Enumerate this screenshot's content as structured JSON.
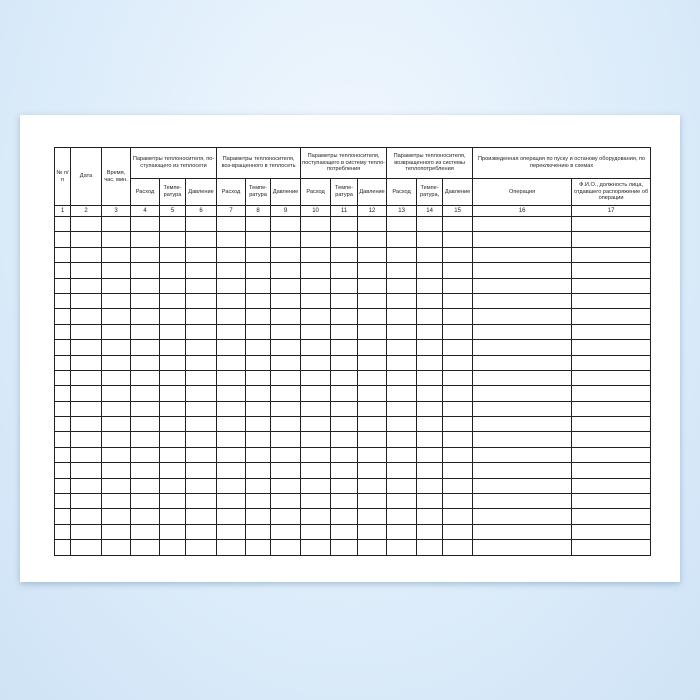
{
  "headers": {
    "no": "№ п/п",
    "date": "Дата",
    "time": "Время, час. мин.",
    "group1": "Параметры теплоносителя, по-ступающего из теплосети",
    "group2": "Параметры теплоносителя, воз-вращенного в теплосеть",
    "group3": "Параметры теплоносителя, поступающего в систему тепло-потребления",
    "group4": "Параметры теплоносителя, возвращенного из системы теплопотребления",
    "group5": "Произведенная операция по пуску и останову оборудования, по переключению в схемах",
    "sub": [
      "Расход",
      "Темпе-ратура",
      "Давление",
      "Расход",
      "Темпе-ратура",
      "Давление",
      "Расход",
      "Темпе-ратура",
      "Давление",
      "Расход",
      "Темпе-ратура,",
      "Давление"
    ],
    "operation": "Операция",
    "person": "Ф.И.О., должность лица, отдавшего распоряжение об операции"
  },
  "column_numbers": [
    "1",
    "2",
    "3",
    "4",
    "5",
    "6",
    "7",
    "8",
    "9",
    "10",
    "11",
    "12",
    "13",
    "14",
    "15",
    "16",
    "17"
  ],
  "empty_rows": 22
}
